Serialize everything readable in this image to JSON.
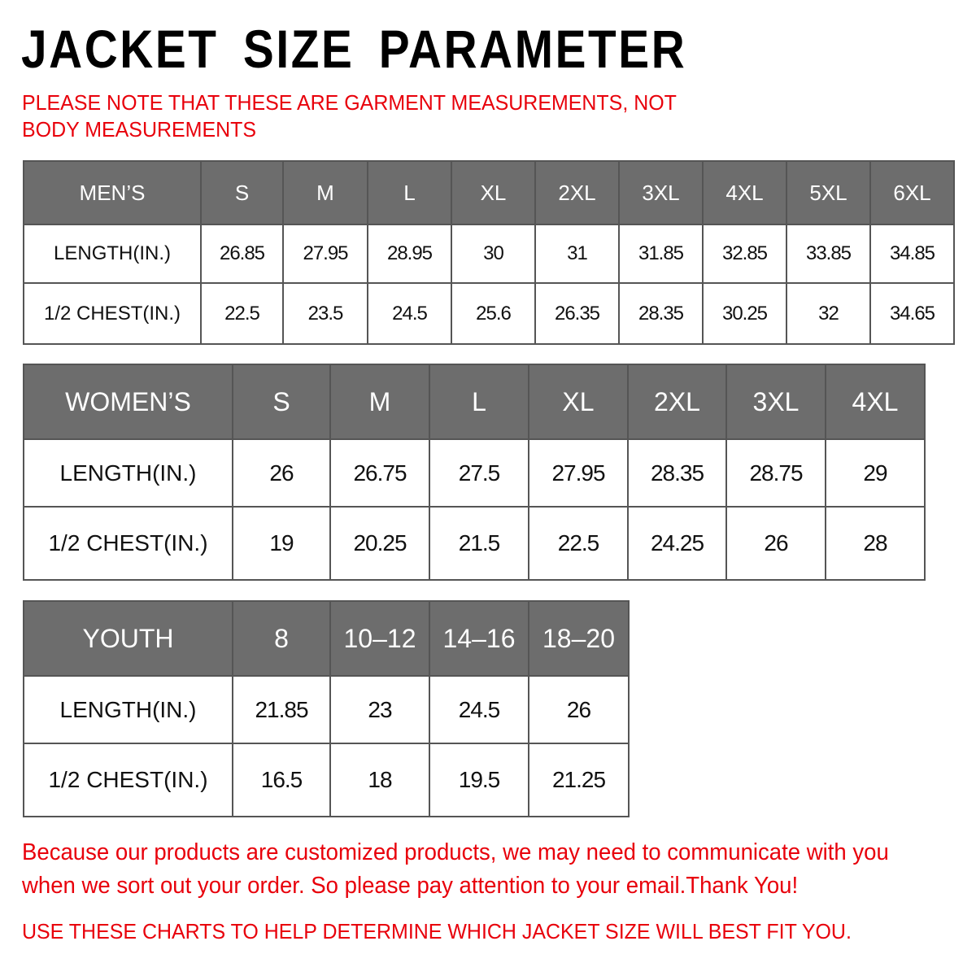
{
  "title": "JACKET SIZE PARAMETER",
  "note": "PLEASE NOTE THAT THESE ARE GARMENT MEASUREMENTS, NOT BODY MEASUREMENTS",
  "colors": {
    "accent_red": "#e8000b",
    "header_gray": "#6d6d6d"
  },
  "tables": {
    "men": {
      "header": [
        "MEN’S",
        "S",
        "M",
        "L",
        "XL",
        "2XL",
        "3XL",
        "4XL",
        "5XL",
        "6XL"
      ],
      "rows": [
        [
          "LENGTH(IN.)",
          "26.85",
          "27.95",
          "28.95",
          "30",
          "31",
          "31.85",
          "32.85",
          "33.85",
          "34.85"
        ],
        [
          "1/2 CHEST(IN.)",
          "22.5",
          "23.5",
          "24.5",
          "25.6",
          "26.35",
          "28.35",
          "30.25",
          "32",
          "34.65"
        ]
      ]
    },
    "women": {
      "header": [
        "WOMEN’S",
        "S",
        "M",
        "L",
        "XL",
        "2XL",
        "3XL",
        "4XL"
      ],
      "rows": [
        [
          "LENGTH(IN.)",
          "26",
          "26.75",
          "27.5",
          "27.95",
          "28.35",
          "28.75",
          "29"
        ],
        [
          "1/2 CHEST(IN.)",
          "19",
          "20.25",
          "21.5",
          "22.5",
          "24.25",
          "26",
          "28"
        ]
      ]
    },
    "youth": {
      "header": [
        "YOUTH",
        "8",
        "10–12",
        "14–16",
        "18–20"
      ],
      "rows": [
        [
          "LENGTH(IN.)",
          "21.85",
          "23",
          "24.5",
          "26"
        ],
        [
          "1/2 CHEST(IN.)",
          "16.5",
          "18",
          "19.5",
          "21.25"
        ]
      ]
    }
  },
  "footer": {
    "message": "Because our products are customized products, we may need to communicate with you when we sort out your order. So please pay attention to your email.Thank You!",
    "advice": "USE THESE CHARTS TO HELP DETERMINE WHICH JACKET SIZE WILL BEST FIT YOU."
  }
}
